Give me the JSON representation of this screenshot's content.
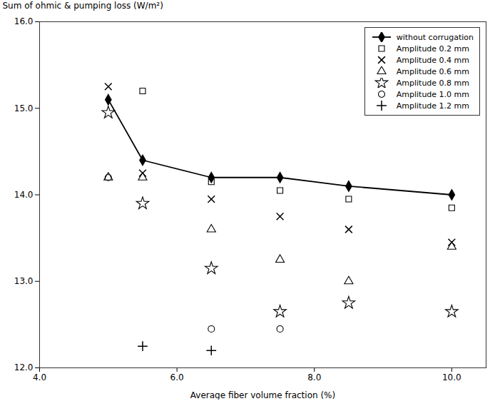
{
  "chart_data": {
    "type": "scatter",
    "xlabel": "Average fiber volume fraction (%)",
    "ylabel": "Sum of ohmic & pumping loss (W/m²)",
    "xlim": [
      4,
      10.5
    ],
    "ylim": [
      12,
      16
    ],
    "xticks": [
      4,
      6,
      8,
      10
    ],
    "yticks": [
      12,
      13,
      14,
      15,
      16
    ],
    "legend": "upper right",
    "series": [
      {
        "name": "without corrugation",
        "type": "line",
        "marker": "diamond",
        "color": "black",
        "x": [
          5.0,
          5.5,
          6.5,
          7.5,
          8.5,
          10.0
        ],
        "values": [
          15.1,
          14.4,
          14.2,
          14.2,
          14.1,
          14.0
        ]
      },
      {
        "name": "Amplitude 0.2 mm",
        "type": "scatter",
        "marker": "square",
        "color": "black",
        "x": [
          5.5,
          6.5,
          7.5,
          8.5,
          10.0
        ],
        "values": [
          15.2,
          14.15,
          14.05,
          13.95,
          13.85
        ]
      },
      {
        "name": "Amplitude 0.4 mm",
        "type": "scatter",
        "marker": "x",
        "color": "black",
        "x": [
          5.0,
          5.5,
          6.5,
          7.5,
          8.5,
          10.0
        ],
        "values": [
          15.25,
          14.25,
          13.95,
          13.75,
          13.6,
          13.45
        ]
      },
      {
        "name": "Amplitude 0.6 mm",
        "type": "scatter",
        "marker": "triangle",
        "color": "black",
        "x": [
          5.0,
          5.5,
          6.5,
          7.5,
          8.5,
          10.0
        ],
        "values": [
          14.2,
          14.2,
          13.6,
          13.25,
          13.0,
          13.4
        ]
      },
      {
        "name": "Amplitude 0.8 mm",
        "type": "scatter",
        "marker": "star",
        "color": "black",
        "x": [
          5.0,
          5.5,
          6.5,
          7.5,
          8.5,
          10.0
        ],
        "values": [
          14.95,
          13.9,
          13.15,
          12.65,
          12.75,
          12.65
        ]
      },
      {
        "name": "Amplitude 1.0 mm",
        "type": "scatter",
        "marker": "circle",
        "color": "black",
        "x": [
          5.0,
          6.5,
          7.5
        ],
        "values": [
          14.2,
          12.45,
          12.45
        ]
      },
      {
        "name": "Amplitude 1.2 mm",
        "type": "scatter",
        "marker": "plus",
        "color": "black",
        "x": [
          5.5,
          6.5
        ],
        "values": [
          12.25,
          12.2
        ]
      }
    ]
  }
}
